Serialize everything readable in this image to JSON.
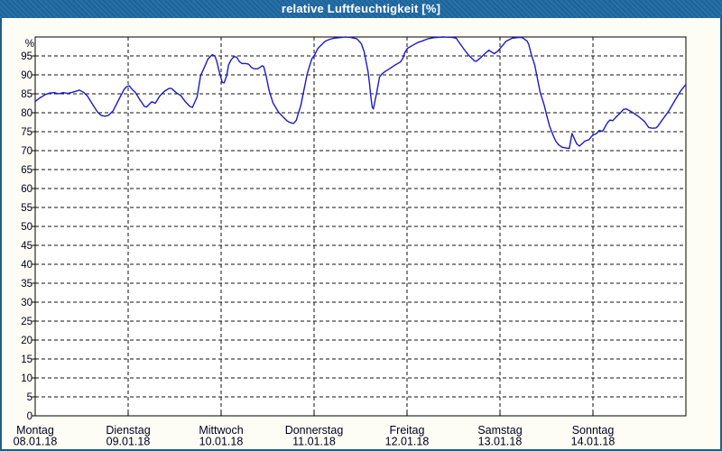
{
  "window": {
    "title": "relative Luftfeuchtigkeit [%]"
  },
  "colors": {
    "frame": "#235d80",
    "title_bar": "#1e68a1",
    "title_text": "#ffffff",
    "canvas_bg": "#fdfdf5",
    "plot_bg": "#ffffff",
    "grid": "#111111",
    "axis_text": "#00001e",
    "line": "#1a1ac8"
  },
  "chart_data": {
    "type": "line",
    "title": "relative Luftfeuchtigkeit [%]",
    "grid": "dashed",
    "legend": "none",
    "y_axis": {
      "unit": "%",
      "min": 0,
      "max": 100,
      "tick_step": 5,
      "labeled_max": 95
    },
    "x_axis": {
      "range_hours": [
        0,
        168
      ],
      "grid_hours": [
        24,
        48,
        72,
        96,
        120,
        144
      ],
      "day_ticks": [
        {
          "hour": 0,
          "weekday": "Montag",
          "date": "08.01.18"
        },
        {
          "hour": 24,
          "weekday": "Dienstag",
          "date": "09.01.18"
        },
        {
          "hour": 48,
          "weekday": "Mittwoch",
          "date": "10.01.18"
        },
        {
          "hour": 72,
          "weekday": "Donnerstag",
          "date": "11.01.18"
        },
        {
          "hour": 96,
          "weekday": "Freitag",
          "date": "12.01.18"
        },
        {
          "hour": 120,
          "weekday": "Samstag",
          "date": "13.01.18"
        },
        {
          "hour": 144,
          "weekday": "Sonntag",
          "date": "14.01.18"
        }
      ]
    },
    "series": [
      {
        "name": "relative Luftfeuchtigkeit",
        "color": "#1a1ac8",
        "points": [
          [
            0,
            83
          ],
          [
            1.2,
            83.9
          ],
          [
            2.6,
            84.8
          ],
          [
            3.7,
            85.2
          ],
          [
            4.9,
            85.3
          ],
          [
            6.1,
            85
          ],
          [
            7.2,
            85.3
          ],
          [
            8.4,
            85.1
          ],
          [
            9.6,
            85.4
          ],
          [
            11,
            85.8
          ],
          [
            11.4,
            86
          ],
          [
            12.6,
            85.3
          ],
          [
            13.5,
            84.4
          ],
          [
            14.9,
            82.1
          ],
          [
            16.1,
            80.2
          ],
          [
            17,
            79.3
          ],
          [
            18,
            79.1
          ],
          [
            18.9,
            79.3
          ],
          [
            20.1,
            80.5
          ],
          [
            21.7,
            83.7
          ],
          [
            22.9,
            86.1
          ],
          [
            23.6,
            86.9
          ],
          [
            24.3,
            87.1
          ],
          [
            25,
            86.2
          ],
          [
            25.9,
            85.3
          ],
          [
            27.1,
            83.3
          ],
          [
            28.2,
            81.7
          ],
          [
            28.7,
            81.5
          ],
          [
            30.1,
            82.9
          ],
          [
            31,
            82.5
          ],
          [
            32.2,
            84.5
          ],
          [
            33.4,
            85.7
          ],
          [
            34.5,
            86.4
          ],
          [
            35.2,
            86.4
          ],
          [
            36.4,
            85.3
          ],
          [
            37.6,
            84.5
          ],
          [
            38.7,
            83
          ],
          [
            39.9,
            81.7
          ],
          [
            40.6,
            81.4
          ],
          [
            41.8,
            84.2
          ],
          [
            42.7,
            89.8
          ],
          [
            43.6,
            91.8
          ],
          [
            44.6,
            94.2
          ],
          [
            45.7,
            95.3
          ],
          [
            46.4,
            95
          ],
          [
            46.9,
            93.5
          ],
          [
            47.6,
            90.5
          ],
          [
            48.3,
            88
          ],
          [
            48.8,
            87.9
          ],
          [
            49.5,
            90
          ],
          [
            49.9,
            92.6
          ],
          [
            50.6,
            94
          ],
          [
            51.3,
            94.8
          ],
          [
            52,
            94.7
          ],
          [
            52.7,
            93.5
          ],
          [
            53.4,
            93
          ],
          [
            54.4,
            93
          ],
          [
            55.1,
            92.8
          ],
          [
            55.8,
            92
          ],
          [
            56.5,
            91.6
          ],
          [
            57.4,
            91.6
          ],
          [
            58.1,
            92
          ],
          [
            58.6,
            92.4
          ],
          [
            59,
            92.2
          ],
          [
            59.7,
            89.4
          ],
          [
            60.4,
            85.8
          ],
          [
            61.4,
            82.6
          ],
          [
            62.8,
            80.2
          ],
          [
            63.9,
            79
          ],
          [
            65.1,
            77.8
          ],
          [
            65.8,
            77.4
          ],
          [
            66.7,
            77.2
          ],
          [
            67.4,
            78
          ],
          [
            67.9,
            79.7
          ],
          [
            68.6,
            82
          ],
          [
            69.1,
            84.6
          ],
          [
            70.2,
            90.2
          ],
          [
            71.4,
            94.2
          ],
          [
            72.1,
            95.2
          ],
          [
            73,
            97
          ],
          [
            74,
            98
          ],
          [
            74.9,
            98.9
          ],
          [
            76.1,
            99.4
          ],
          [
            77.2,
            99.7
          ],
          [
            78.4,
            99.8
          ],
          [
            80,
            100
          ],
          [
            81.4,
            99.9
          ],
          [
            83.1,
            99.5
          ],
          [
            84.2,
            98.2
          ],
          [
            84.9,
            96.2
          ],
          [
            85.9,
            91
          ],
          [
            86.3,
            87.8
          ],
          [
            86.6,
            84.6
          ],
          [
            87,
            81.5
          ],
          [
            87.3,
            81
          ],
          [
            87.7,
            83
          ],
          [
            88.2,
            85.4
          ],
          [
            88.9,
            89.4
          ],
          [
            89.6,
            90.3
          ],
          [
            90.5,
            91
          ],
          [
            91.2,
            91.4
          ],
          [
            92.9,
            92.6
          ],
          [
            94.3,
            93.4
          ],
          [
            95,
            94.5
          ],
          [
            95.4,
            95.8
          ],
          [
            96.1,
            97
          ],
          [
            97.5,
            97.8
          ],
          [
            98.9,
            98.6
          ],
          [
            100.1,
            99
          ],
          [
            101.3,
            99.5
          ],
          [
            102.9,
            99.8
          ],
          [
            105.2,
            100
          ],
          [
            107.6,
            99.9
          ],
          [
            108.7,
            99.7
          ],
          [
            109.2,
            98.9
          ],
          [
            110.6,
            96.9
          ],
          [
            111.8,
            95.3
          ],
          [
            113.4,
            93.7
          ],
          [
            113.9,
            93.6
          ],
          [
            115,
            94.5
          ],
          [
            116.2,
            95.7
          ],
          [
            117.1,
            96.5
          ],
          [
            118.5,
            95.6
          ],
          [
            119.5,
            96.3
          ],
          [
            120.2,
            97.2
          ],
          [
            121.6,
            98.9
          ],
          [
            123.2,
            99.7
          ],
          [
            125.1,
            99.9
          ],
          [
            125.8,
            99.8
          ],
          [
            127,
            98.9
          ],
          [
            127.4,
            98.1
          ],
          [
            128.1,
            95.3
          ],
          [
            129,
            92.5
          ],
          [
            129.7,
            88.9
          ],
          [
            130.4,
            85.3
          ],
          [
            131.4,
            82.1
          ],
          [
            132.1,
            79.2
          ],
          [
            132.8,
            76.5
          ],
          [
            133.7,
            74.1
          ],
          [
            134.4,
            72.5
          ],
          [
            135.1,
            71.6
          ],
          [
            136,
            70.9
          ],
          [
            137,
            70.7
          ],
          [
            137.9,
            70.6
          ],
          [
            138.6,
            74.5
          ],
          [
            139.8,
            71.8
          ],
          [
            140.5,
            71.2
          ],
          [
            141.9,
            72.5
          ],
          [
            143,
            72.9
          ],
          [
            143.7,
            73.8
          ],
          [
            144.2,
            74.2
          ],
          [
            144.9,
            74.5
          ],
          [
            145.6,
            75.3
          ],
          [
            146.5,
            75.1
          ],
          [
            147.7,
            77.3
          ],
          [
            148.4,
            78.1
          ],
          [
            149.1,
            77.9
          ],
          [
            150,
            78.9
          ],
          [
            151.2,
            80.1
          ],
          [
            151.9,
            80.9
          ],
          [
            152.6,
            81
          ],
          [
            153.5,
            80.5
          ],
          [
            154.2,
            80.1
          ],
          [
            155.9,
            78.9
          ],
          [
            157.3,
            77.7
          ],
          [
            158.4,
            76.1
          ],
          [
            159.4,
            75.9
          ],
          [
            160.3,
            76
          ],
          [
            160.8,
            76.5
          ],
          [
            161.9,
            78.1
          ],
          [
            163.6,
            80.5
          ],
          [
            165.2,
            83.3
          ],
          [
            166.6,
            85.7
          ],
          [
            168,
            87.5
          ]
        ]
      }
    ]
  }
}
